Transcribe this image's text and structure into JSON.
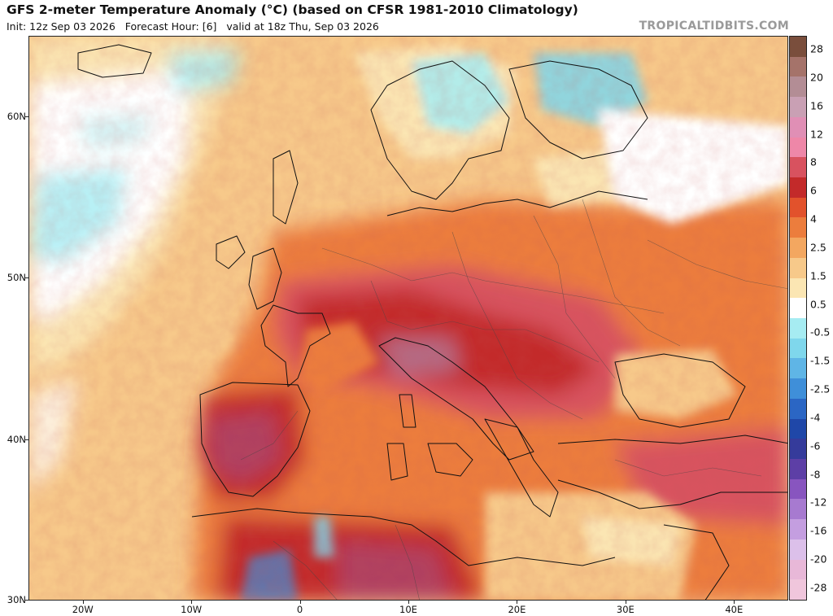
{
  "header": {
    "title": "GFS 2-meter Temperature Anomaly (°C) (based on CFSR 1981-2010 Climatology)",
    "subtitle": "Init: 12z Sep 03 2026   Forecast Hour: [6]   valid at 18z Thu, Sep 03 2026",
    "brand": "TROPICALTIDBITS.COM"
  },
  "map": {
    "lat_labels": [
      "60N",
      "50N",
      "40N",
      "30N"
    ],
    "lat_values": [
      60,
      50,
      40,
      30
    ],
    "lon_labels": [
      "20W",
      "10W",
      "0",
      "10E",
      "20E",
      "30E",
      "40E"
    ],
    "lon_values": [
      -20,
      -10,
      0,
      10,
      20,
      30,
      40
    ],
    "extent": {
      "lon_min": -25,
      "lon_max": 45,
      "lat_min": 30,
      "lat_max": 65
    }
  },
  "colorbar": {
    "labels": [
      "28",
      "20",
      "16",
      "12",
      "8",
      "6",
      "4",
      "2.5",
      "1.5",
      "0.5",
      "-0.5",
      "-1.5",
      "-2.5",
      "-4",
      "-6",
      "-8",
      "-12",
      "-16",
      "-20",
      "-28"
    ],
    "colors": [
      "#7a4e3c",
      "#a5736a",
      "#b38d95",
      "#c9a0b4",
      "#e08fb5",
      "#ee87a8",
      "#d8525f",
      "#c32a2a",
      "#e2522c",
      "#ec7d3d",
      "#f3a760",
      "#f7c98a",
      "#fbe6b3",
      "#ffffff",
      "#a6ecf2",
      "#7fd7ec",
      "#5fb5e6",
      "#3f8fd9",
      "#2b66c4",
      "#1f47a8",
      "#353b9b",
      "#5d3fa6",
      "#8855bf",
      "#a77ad0",
      "#c49ee0",
      "#dcc0ea",
      "#e8b8d8",
      "#f0c6dc"
    ]
  }
}
